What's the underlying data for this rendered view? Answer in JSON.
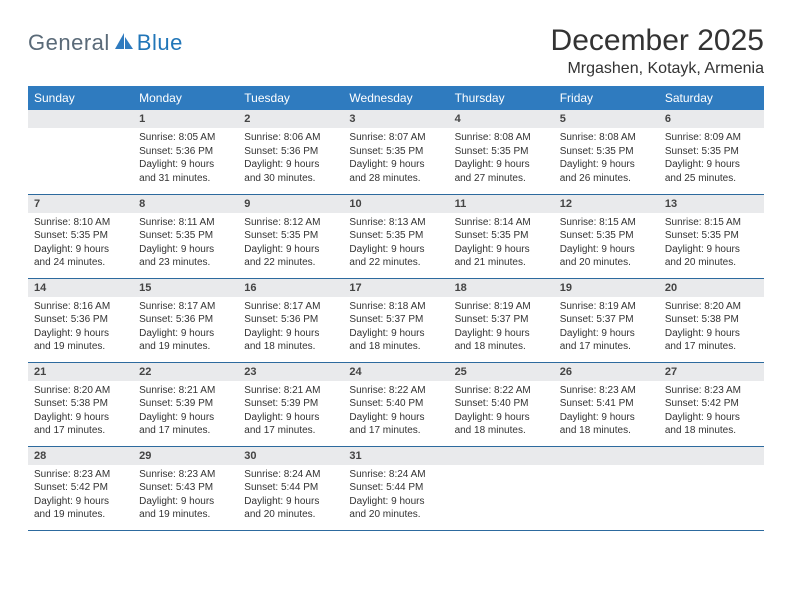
{
  "brand": {
    "part1": "General",
    "part2": "Blue"
  },
  "title": "December 2025",
  "location": "Mrgashen, Kotayk, Armenia",
  "colors": {
    "header_bg": "#2f7bbf",
    "header_text": "#ffffff",
    "daynum_bg": "#e9eaec",
    "row_border": "#2d6a9e",
    "brand_gray": "#5a6a78",
    "brand_blue": "#2176b8"
  },
  "weekdays": [
    "Sunday",
    "Monday",
    "Tuesday",
    "Wednesday",
    "Thursday",
    "Friday",
    "Saturday"
  ],
  "weeks": [
    [
      {
        "empty": true
      },
      {
        "n": "1",
        "sunrise": "8:05 AM",
        "sunset": "5:36 PM",
        "daylight": "9 hours and 31 minutes."
      },
      {
        "n": "2",
        "sunrise": "8:06 AM",
        "sunset": "5:36 PM",
        "daylight": "9 hours and 30 minutes."
      },
      {
        "n": "3",
        "sunrise": "8:07 AM",
        "sunset": "5:35 PM",
        "daylight": "9 hours and 28 minutes."
      },
      {
        "n": "4",
        "sunrise": "8:08 AM",
        "sunset": "5:35 PM",
        "daylight": "9 hours and 27 minutes."
      },
      {
        "n": "5",
        "sunrise": "8:08 AM",
        "sunset": "5:35 PM",
        "daylight": "9 hours and 26 minutes."
      },
      {
        "n": "6",
        "sunrise": "8:09 AM",
        "sunset": "5:35 PM",
        "daylight": "9 hours and 25 minutes."
      }
    ],
    [
      {
        "n": "7",
        "sunrise": "8:10 AM",
        "sunset": "5:35 PM",
        "daylight": "9 hours and 24 minutes."
      },
      {
        "n": "8",
        "sunrise": "8:11 AM",
        "sunset": "5:35 PM",
        "daylight": "9 hours and 23 minutes."
      },
      {
        "n": "9",
        "sunrise": "8:12 AM",
        "sunset": "5:35 PM",
        "daylight": "9 hours and 22 minutes."
      },
      {
        "n": "10",
        "sunrise": "8:13 AM",
        "sunset": "5:35 PM",
        "daylight": "9 hours and 22 minutes."
      },
      {
        "n": "11",
        "sunrise": "8:14 AM",
        "sunset": "5:35 PM",
        "daylight": "9 hours and 21 minutes."
      },
      {
        "n": "12",
        "sunrise": "8:15 AM",
        "sunset": "5:35 PM",
        "daylight": "9 hours and 20 minutes."
      },
      {
        "n": "13",
        "sunrise": "8:15 AM",
        "sunset": "5:35 PM",
        "daylight": "9 hours and 20 minutes."
      }
    ],
    [
      {
        "n": "14",
        "sunrise": "8:16 AM",
        "sunset": "5:36 PM",
        "daylight": "9 hours and 19 minutes."
      },
      {
        "n": "15",
        "sunrise": "8:17 AM",
        "sunset": "5:36 PM",
        "daylight": "9 hours and 19 minutes."
      },
      {
        "n": "16",
        "sunrise": "8:17 AM",
        "sunset": "5:36 PM",
        "daylight": "9 hours and 18 minutes."
      },
      {
        "n": "17",
        "sunrise": "8:18 AM",
        "sunset": "5:37 PM",
        "daylight": "9 hours and 18 minutes."
      },
      {
        "n": "18",
        "sunrise": "8:19 AM",
        "sunset": "5:37 PM",
        "daylight": "9 hours and 18 minutes."
      },
      {
        "n": "19",
        "sunrise": "8:19 AM",
        "sunset": "5:37 PM",
        "daylight": "9 hours and 17 minutes."
      },
      {
        "n": "20",
        "sunrise": "8:20 AM",
        "sunset": "5:38 PM",
        "daylight": "9 hours and 17 minutes."
      }
    ],
    [
      {
        "n": "21",
        "sunrise": "8:20 AM",
        "sunset": "5:38 PM",
        "daylight": "9 hours and 17 minutes."
      },
      {
        "n": "22",
        "sunrise": "8:21 AM",
        "sunset": "5:39 PM",
        "daylight": "9 hours and 17 minutes."
      },
      {
        "n": "23",
        "sunrise": "8:21 AM",
        "sunset": "5:39 PM",
        "daylight": "9 hours and 17 minutes."
      },
      {
        "n": "24",
        "sunrise": "8:22 AM",
        "sunset": "5:40 PM",
        "daylight": "9 hours and 17 minutes."
      },
      {
        "n": "25",
        "sunrise": "8:22 AM",
        "sunset": "5:40 PM",
        "daylight": "9 hours and 18 minutes."
      },
      {
        "n": "26",
        "sunrise": "8:23 AM",
        "sunset": "5:41 PM",
        "daylight": "9 hours and 18 minutes."
      },
      {
        "n": "27",
        "sunrise": "8:23 AM",
        "sunset": "5:42 PM",
        "daylight": "9 hours and 18 minutes."
      }
    ],
    [
      {
        "n": "28",
        "sunrise": "8:23 AM",
        "sunset": "5:42 PM",
        "daylight": "9 hours and 19 minutes."
      },
      {
        "n": "29",
        "sunrise": "8:23 AM",
        "sunset": "5:43 PM",
        "daylight": "9 hours and 19 minutes."
      },
      {
        "n": "30",
        "sunrise": "8:24 AM",
        "sunset": "5:44 PM",
        "daylight": "9 hours and 20 minutes."
      },
      {
        "n": "31",
        "sunrise": "8:24 AM",
        "sunset": "5:44 PM",
        "daylight": "9 hours and 20 minutes."
      },
      {
        "empty": true
      },
      {
        "empty": true
      },
      {
        "empty": true
      }
    ]
  ],
  "labels": {
    "sunrise": "Sunrise:",
    "sunset": "Sunset:",
    "daylight": "Daylight:"
  }
}
